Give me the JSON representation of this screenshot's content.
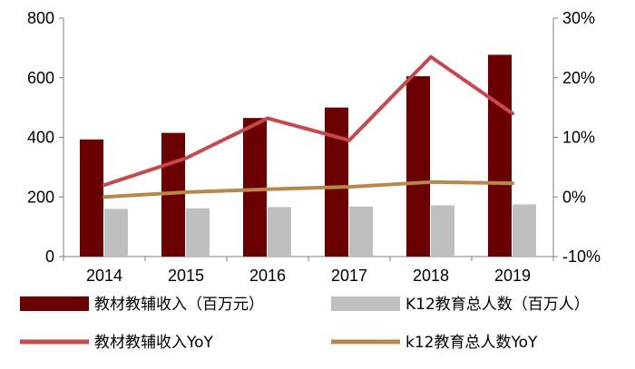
{
  "chart_data": {
    "type": "bar",
    "categories": [
      "2014",
      "2015",
      "2016",
      "2017",
      "2018",
      "2019"
    ],
    "y_left": {
      "ylim": [
        0,
        800
      ],
      "ticks": [
        "0",
        "200",
        "400",
        "600",
        "800"
      ]
    },
    "y_right": {
      "ylim": [
        -10,
        30
      ],
      "ticks": [
        "-10%",
        "0%",
        "10%",
        "20%",
        "30%"
      ]
    },
    "series": [
      {
        "name": "教材教辅收入（百万元）",
        "kind": "bar",
        "axis": "left",
        "color": "#6b0000",
        "values": [
          393,
          415,
          465,
          500,
          605,
          677
        ]
      },
      {
        "name": "K12教育总人数（百万人）",
        "kind": "bar",
        "axis": "left",
        "color": "#bfbfbf",
        "values": [
          160,
          162,
          166,
          168,
          172,
          175
        ]
      },
      {
        "name": "教材教辅收入YoY",
        "kind": "line",
        "axis": "right",
        "color": "#c8474d",
        "values": [
          2.0,
          6.5,
          13.2,
          9.5,
          23.5,
          14.0
        ]
      },
      {
        "name": "k12教育总人数YoY",
        "kind": "line",
        "axis": "right",
        "color": "#b8874c",
        "values": [
          0.0,
          0.8,
          1.3,
          1.7,
          2.5,
          2.3
        ]
      }
    ],
    "grid": false,
    "legend_position": "bottom"
  }
}
